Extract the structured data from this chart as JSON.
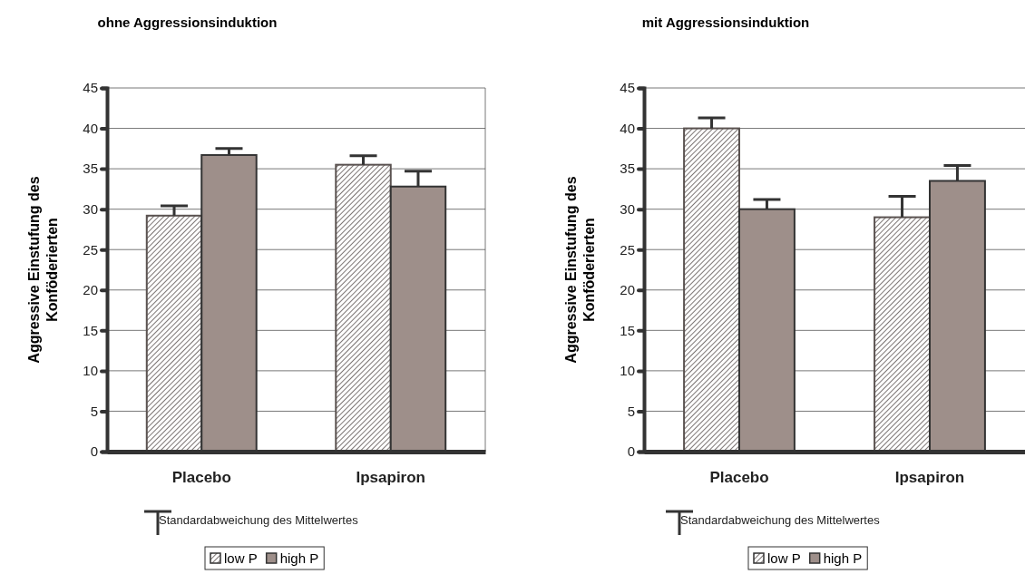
{
  "chart_data": [
    {
      "type": "bar",
      "title": "ohne Aggressionsinduktion",
      "ylabel": "Aggressive Einstufung des Konföderierten",
      "categories": [
        "Placebo",
        "Ipsapiron"
      ],
      "series": [
        {
          "name": "low P",
          "color": "#5a5250",
          "values": [
            29.2,
            35.5
          ],
          "errors": [
            [
              29.2,
              30.4
            ],
            [
              35.5,
              36.6
            ]
          ]
        },
        {
          "name": "high P",
          "color": "#9e8f8a",
          "values": [
            36.7,
            32.8
          ],
          "errors": [
            [
              36.7,
              37.5
            ],
            [
              32.8,
              34.7
            ]
          ]
        }
      ],
      "ylim": [
        0,
        45
      ],
      "yticks": [
        0,
        5,
        10,
        15,
        20,
        25,
        30,
        35,
        40,
        45
      ],
      "grid": "y",
      "legend": "bottom",
      "annotations": [
        "Standardabweichung des Mittelwertes"
      ]
    },
    {
      "type": "bar",
      "title": "mit Aggressionsinduktion",
      "ylabel": "Aggressive Einstufung des Konföderierten",
      "categories": [
        "Placebo",
        "Ipsapiron"
      ],
      "series": [
        {
          "name": "low P",
          "color": "#5a5250",
          "values": [
            40,
            29
          ],
          "errors": [
            [
              40,
              41.3
            ],
            [
              29,
              31.6
            ]
          ]
        },
        {
          "name": "high P",
          "color": "#9e8f8a",
          "values": [
            30,
            33.5
          ],
          "errors": [
            [
              30,
              31.2
            ],
            [
              33.5,
              35.4
            ]
          ]
        }
      ],
      "ylim": [
        0,
        45
      ],
      "yticks": [
        0,
        5,
        10,
        15,
        20,
        25,
        30,
        35,
        40,
        45
      ],
      "grid": "y",
      "legend": "bottom",
      "annotations": [
        "Standardabweichung des Mittelwertes"
      ]
    }
  ]
}
